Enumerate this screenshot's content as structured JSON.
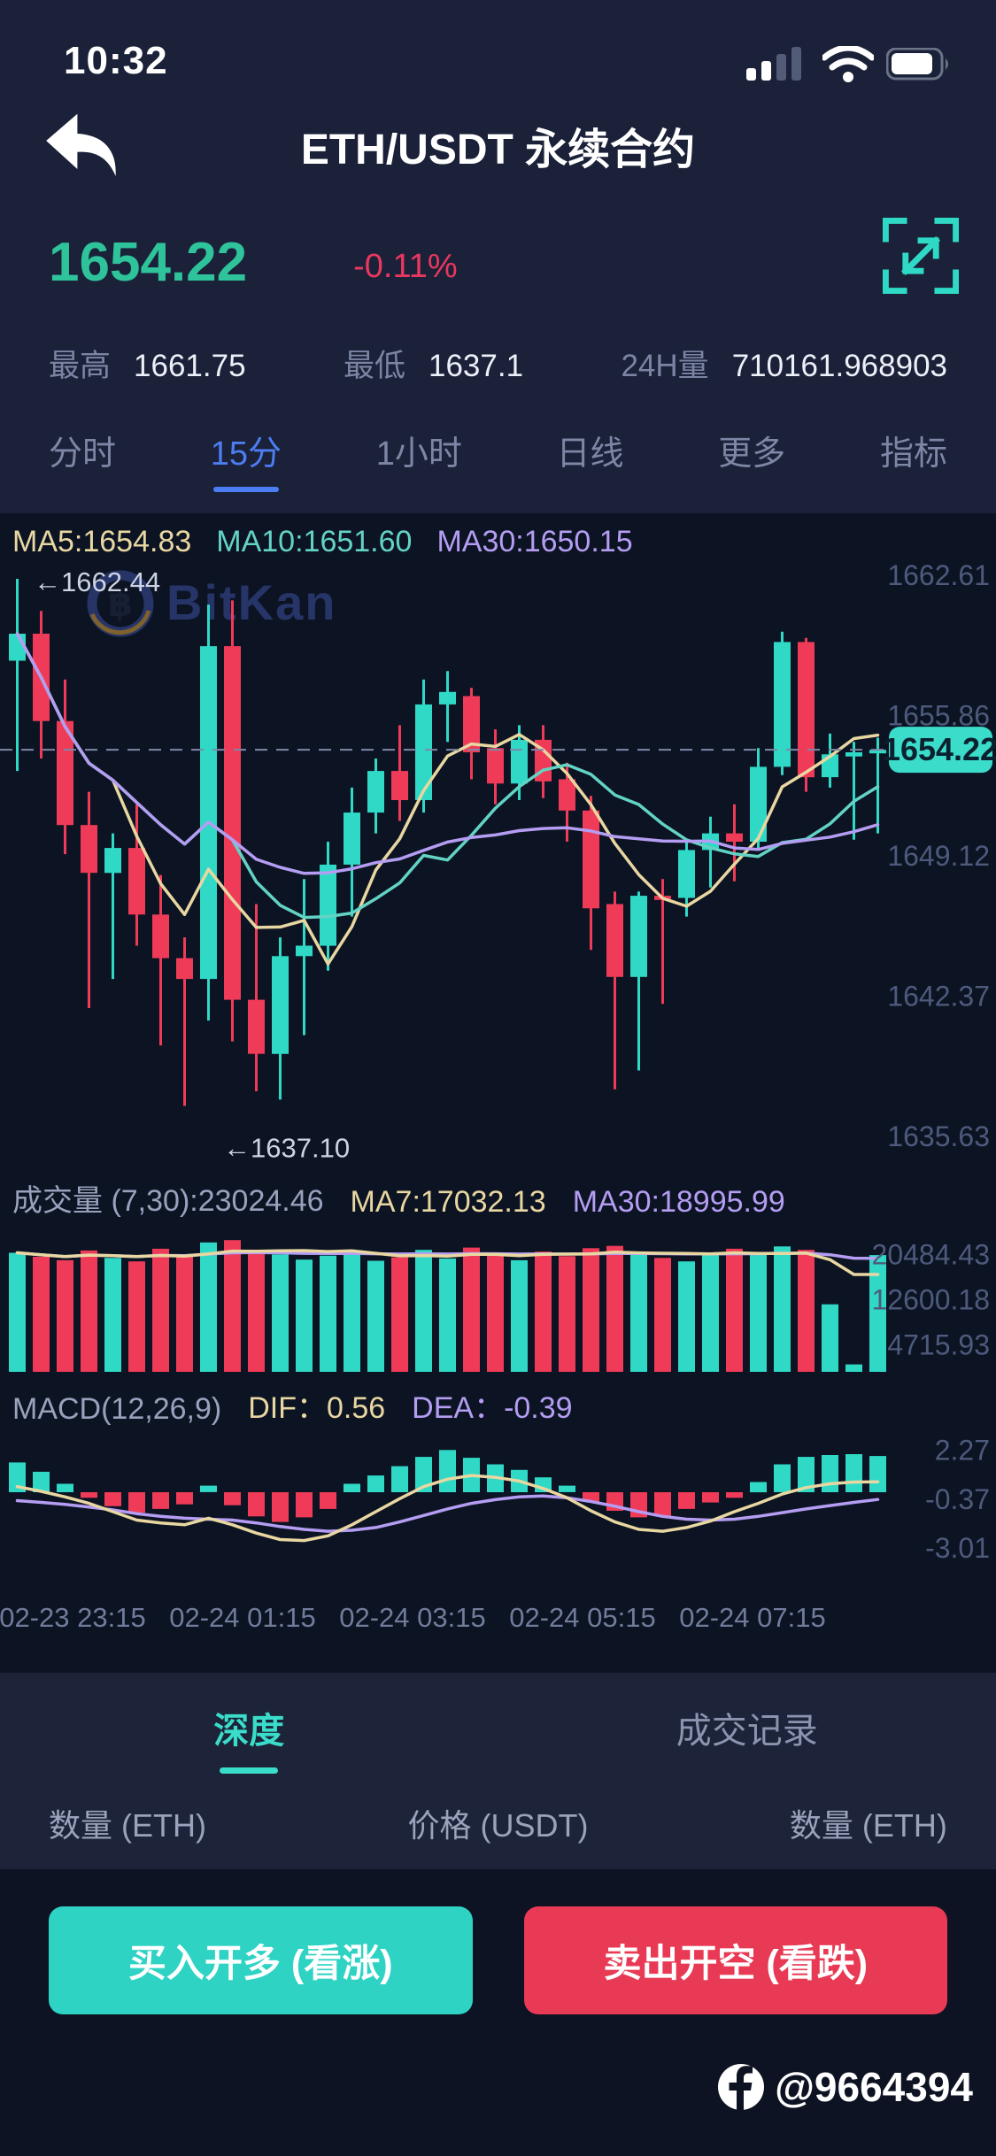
{
  "status_bar": {
    "time": "10:32"
  },
  "header": {
    "title": "ETH/USDT 永续合约"
  },
  "ticker": {
    "price": "1654.22",
    "change": "-0.11%"
  },
  "stats": {
    "high_label": "最高",
    "high_value": "1661.75",
    "low_label": "最低",
    "low_value": "1637.1",
    "volume_label": "24H量",
    "volume_value": "710161.968903"
  },
  "interval_tabs": [
    {
      "label": "分时",
      "active": false
    },
    {
      "label": "15分",
      "active": true
    },
    {
      "label": "1小时",
      "active": false
    },
    {
      "label": "日线",
      "active": false
    },
    {
      "label": "更多",
      "active": false
    },
    {
      "label": "指标",
      "active": false
    }
  ],
  "chart_data": {
    "type": "candlestick",
    "watermark": "BitKan",
    "ma_labels": {
      "ma5": "MA5:1654.83",
      "ma10": "MA10:1651.60",
      "ma30": "MA30:1650.15"
    },
    "annotations": {
      "high": "←1662.44",
      "low": "←1637.10"
    },
    "current_price": 1654.22,
    "current_price_label": "1654.22",
    "price_axis": [
      1662.61,
      1655.86,
      1649.12,
      1642.37,
      1635.63
    ],
    "x_labels": [
      "02-23 23:15",
      "02-24 01:15",
      "02-24 03:15",
      "02-24 05:15",
      "02-24 07:15"
    ],
    "candles": [
      [
        1658.5,
        1662.44,
        1653.2,
        1659.8
      ],
      [
        1659.8,
        1660.9,
        1653.8,
        1655.6
      ],
      [
        1655.6,
        1657.6,
        1649.2,
        1650.6
      ],
      [
        1650.6,
        1652.2,
        1641.8,
        1648.3
      ],
      [
        1648.3,
        1650.2,
        1643.2,
        1649.5
      ],
      [
        1649.5,
        1651.6,
        1644.8,
        1646.3
      ],
      [
        1646.3,
        1648.2,
        1640.0,
        1644.2
      ],
      [
        1644.2,
        1645.2,
        1637.1,
        1643.2
      ],
      [
        1643.2,
        1661.2,
        1641.2,
        1659.2
      ],
      [
        1659.2,
        1661.4,
        1640.2,
        1642.2
      ],
      [
        1642.2,
        1646.8,
        1637.8,
        1639.6
      ],
      [
        1639.6,
        1645.2,
        1637.4,
        1644.3
      ],
      [
        1644.3,
        1648.0,
        1640.5,
        1644.8
      ],
      [
        1644.8,
        1649.8,
        1643.6,
        1648.7
      ],
      [
        1648.7,
        1652.4,
        1646.2,
        1651.2
      ],
      [
        1651.2,
        1653.8,
        1650.2,
        1653.2
      ],
      [
        1653.2,
        1655.4,
        1650.8,
        1651.8
      ],
      [
        1651.8,
        1657.6,
        1651.2,
        1656.4
      ],
      [
        1656.4,
        1658.0,
        1654.6,
        1657.0
      ],
      [
        1656.8,
        1657.2,
        1652.8,
        1654.1
      ],
      [
        1654.3,
        1655.2,
        1651.6,
        1652.6
      ],
      [
        1652.6,
        1655.4,
        1651.8,
        1654.7
      ],
      [
        1654.7,
        1655.4,
        1651.9,
        1652.7
      ],
      [
        1652.8,
        1653.6,
        1649.8,
        1651.3
      ],
      [
        1651.3,
        1652.0,
        1644.6,
        1646.6
      ],
      [
        1646.8,
        1647.4,
        1637.9,
        1643.3
      ],
      [
        1643.3,
        1647.4,
        1638.8,
        1647.2
      ],
      [
        1647.2,
        1648.0,
        1642.0,
        1647.0
      ],
      [
        1647.1,
        1649.8,
        1646.2,
        1649.4
      ],
      [
        1649.4,
        1651.0,
        1647.6,
        1650.2
      ],
      [
        1650.2,
        1651.6,
        1647.9,
        1649.8
      ],
      [
        1649.8,
        1654.3,
        1649.5,
        1653.4
      ],
      [
        1653.4,
        1659.9,
        1653.0,
        1659.4
      ],
      [
        1659.4,
        1659.6,
        1652.2,
        1652.9
      ],
      [
        1652.9,
        1655.0,
        1652.4,
        1654.0
      ],
      [
        1653.9,
        1654.6,
        1649.9,
        1654.1
      ],
      [
        1654.1,
        1654.8,
        1650.2,
        1654.22
      ]
    ],
    "volume": {
      "title": "成交量 (7,30):23024.46",
      "ma7_label": "MA7:17032.13",
      "ma30_label": "MA30:18995.99",
      "axis": [
        20484.43,
        12600.18,
        4715.93
      ],
      "values": [
        20800,
        20100,
        19500,
        21200,
        19900,
        19300,
        21500,
        20100,
        22600,
        23000,
        21000,
        20500,
        19600,
        20300,
        21100,
        19400,
        20000,
        21300,
        19800,
        21700,
        20400,
        19500,
        21000,
        20200,
        21600,
        22000,
        20800,
        19900,
        19300,
        20500,
        21500,
        20800,
        21900,
        21300,
        11800,
        1300,
        20400
      ]
    },
    "macd": {
      "title": "MACD(12,26,9)",
      "dif_label": "DIF：0.56",
      "dea_label": "DEA：-0.39",
      "axis": [
        2.27,
        -0.37,
        -3.01
      ],
      "hist": [
        1.6,
        1.1,
        0.45,
        -0.3,
        -0.75,
        -1.1,
        -0.9,
        -0.65,
        0.35,
        -0.7,
        -1.3,
        -1.6,
        -1.35,
        -0.9,
        0.45,
        0.9,
        1.4,
        1.9,
        2.27,
        1.85,
        1.5,
        1.2,
        0.8,
        0.35,
        -0.5,
        -1.0,
        -1.35,
        -1.3,
        -0.9,
        -0.55,
        -0.3,
        0.55,
        1.5,
        1.9,
        2.0,
        2.05,
        1.95
      ],
      "dif": [
        0.3,
        0.05,
        -0.25,
        -0.6,
        -1.05,
        -1.5,
        -1.65,
        -1.75,
        -1.4,
        -1.75,
        -2.2,
        -2.55,
        -2.6,
        -2.35,
        -1.75,
        -1.05,
        -0.35,
        0.3,
        0.7,
        0.9,
        0.8,
        0.6,
        0.2,
        -0.3,
        -1.0,
        -1.6,
        -2.0,
        -2.1,
        -1.9,
        -1.55,
        -1.05,
        -0.6,
        -0.1,
        0.25,
        0.45,
        0.55,
        0.56
      ],
      "dea": [
        -0.45,
        -0.55,
        -0.65,
        -0.8,
        -0.95,
        -1.15,
        -1.3,
        -1.4,
        -1.45,
        -1.5,
        -1.65,
        -1.85,
        -2.0,
        -2.1,
        -2.05,
        -1.9,
        -1.6,
        -1.25,
        -0.9,
        -0.6,
        -0.4,
        -0.25,
        -0.2,
        -0.3,
        -0.5,
        -0.75,
        -1.05,
        -1.3,
        -1.45,
        -1.5,
        -1.45,
        -1.3,
        -1.1,
        -0.9,
        -0.72,
        -0.55,
        -0.39
      ]
    },
    "colors": {
      "up": "#2fd9c6",
      "down": "#ef3b58",
      "ma5": "#e9d7a2",
      "ma10": "#63d3c5",
      "ma30": "#b49df2",
      "axis_text": "#4e5a7c",
      "current_badge": "#3bdcca",
      "dashed_line": "#7e88a8",
      "annotation_text": "#ccd3e3",
      "watermark": "#2a3870",
      "watermark_gold": "#8a6b2f"
    }
  },
  "depth": {
    "tabs": [
      {
        "label": "深度",
        "active": true
      },
      {
        "label": "成交记录",
        "active": false
      }
    ],
    "columns": [
      "数量 (ETH)",
      "价格 (USDT)",
      "数量 (ETH)"
    ]
  },
  "actions": {
    "buy": "买入开多 (看涨)",
    "sell": "卖出开空 (看跌)"
  },
  "footer": {
    "handle": "@9664394"
  }
}
